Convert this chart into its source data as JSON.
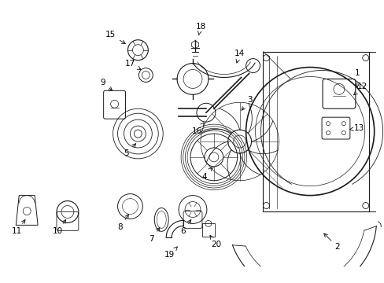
{
  "bg_color": "#ffffff",
  "line_color": "#1a1a1a",
  "label_color": "#000000",
  "labels": [
    [
      1,
      4.55,
      3.12,
      4.55,
      2.9
    ],
    [
      2,
      4.3,
      0.9,
      4.1,
      1.1
    ],
    [
      3,
      3.18,
      2.78,
      3.05,
      2.62
    ],
    [
      4,
      2.6,
      1.8,
      2.72,
      1.95
    ],
    [
      5,
      1.6,
      2.1,
      1.75,
      2.25
    ],
    [
      6,
      2.32,
      1.1,
      2.45,
      1.28
    ],
    [
      7,
      1.92,
      1.0,
      2.05,
      1.18
    ],
    [
      8,
      1.52,
      1.15,
      1.65,
      1.35
    ],
    [
      9,
      1.3,
      3.0,
      1.45,
      2.88
    ],
    [
      10,
      0.72,
      1.1,
      0.85,
      1.28
    ],
    [
      11,
      0.2,
      1.1,
      0.33,
      1.28
    ],
    [
      12,
      4.62,
      2.95,
      4.48,
      2.82
    ],
    [
      13,
      4.58,
      2.42,
      4.42,
      2.4
    ],
    [
      14,
      3.05,
      3.38,
      3.0,
      3.22
    ],
    [
      15,
      1.4,
      3.62,
      1.62,
      3.48
    ],
    [
      16,
      2.5,
      2.38,
      2.62,
      2.52
    ],
    [
      17,
      1.65,
      3.25,
      1.82,
      3.15
    ],
    [
      18,
      2.55,
      3.72,
      2.52,
      3.58
    ],
    [
      19,
      2.15,
      0.8,
      2.28,
      0.93
    ],
    [
      20,
      2.75,
      0.93,
      2.65,
      1.08
    ]
  ]
}
